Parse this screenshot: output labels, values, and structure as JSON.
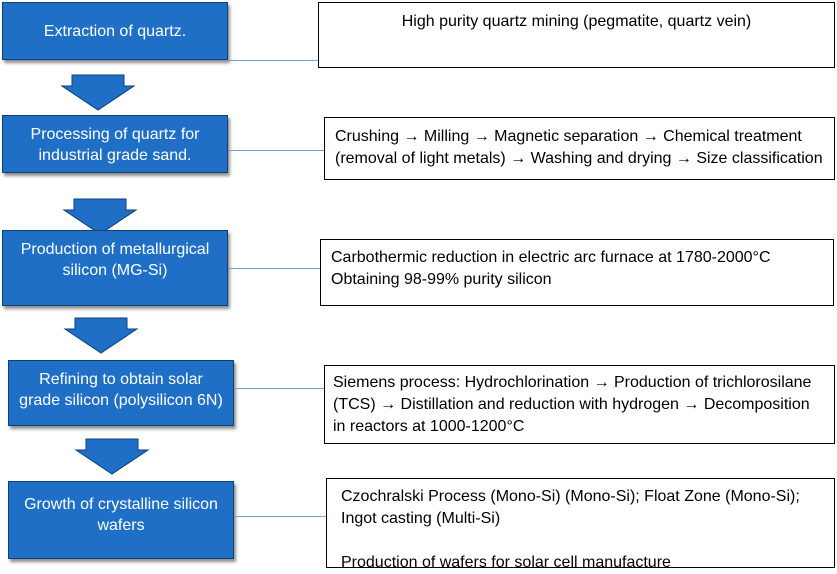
{
  "colors": {
    "step_fill": "#1f6fc6",
    "step_border": "#0e3f78",
    "connector": "#6f9fd8",
    "note_border": "#000000"
  },
  "steps": [
    {
      "label": "Extraction of quartz."
    },
    {
      "label": "Processing of quartz for industrial grade sand."
    },
    {
      "label": "Production of metallurgical silicon (MG-Si)"
    },
    {
      "label": "Refining to obtain solar grade silicon (polysilicon 6N)"
    },
    {
      "label": "Growth of crystalline silicon wafers"
    }
  ],
  "notes": [
    {
      "lines": [
        "High purity quartz mining (pegmatite, quartz vein)"
      ]
    },
    {
      "lines": [
        "Crushing → Milling → Magnetic separation → Chemical treatment",
        "(removal of light metals) → Washing and drying → Size classification"
      ]
    },
    {
      "lines": [
        "Carbothermic reduction in electric arc furnace at 1780-2000°C",
        "Obtaining 98-99% purity silicon"
      ]
    },
    {
      "lines": [
        "Siemens process: Hydrochlorination → Production of trichlorosilane",
        "(TCS) →  Distillation and reduction with hydrogen → Decomposition",
        "in reactors at 1000-1200°C"
      ]
    },
    {
      "lines": [
        "Czochralski Process (Mono-Si) (Mono-Si); Float Zone (Mono-Si);",
        "Ingot casting (Multi-Si)",
        "",
        "Production of wafers for solar cell manufacture"
      ]
    }
  ]
}
